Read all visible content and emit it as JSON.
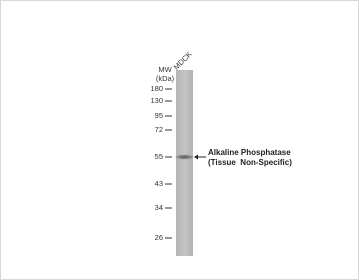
{
  "lane_label": "MDCK",
  "mw_label": [
    "MW",
    "(kDa)"
  ],
  "markers": [
    180,
    130,
    95,
    72,
    55,
    43,
    34,
    26
  ],
  "band_label": [
    "Alkaline Phosphatase",
    "(Tissue  Non-Specific)"
  ]
}
